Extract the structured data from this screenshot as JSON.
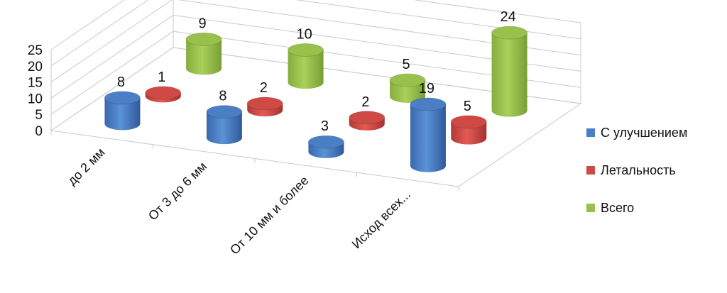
{
  "chart_data": {
    "type": "bar",
    "style": "3d-cylinder",
    "categories": [
      "до 2 мм",
      "От 3 до 6 мм",
      "От 10 мм и более",
      "Исход всех..."
    ],
    "series": [
      {
        "name": "С улучшением",
        "color": "#4a7fc6",
        "values": [
          8,
          8,
          3,
          19
        ]
      },
      {
        "name": "Летальность",
        "color": "#cf4a45",
        "values": [
          1,
          2,
          2,
          5
        ]
      },
      {
        "name": "Всего",
        "color": "#97c14a",
        "values": [
          9,
          10,
          5,
          24
        ]
      }
    ],
    "yticks": [
      "0",
      "5",
      "10",
      "15",
      "20",
      "25"
    ],
    "ylim": [
      0,
      25
    ],
    "grid": true,
    "legend_position": "right",
    "data_labels": true
  }
}
